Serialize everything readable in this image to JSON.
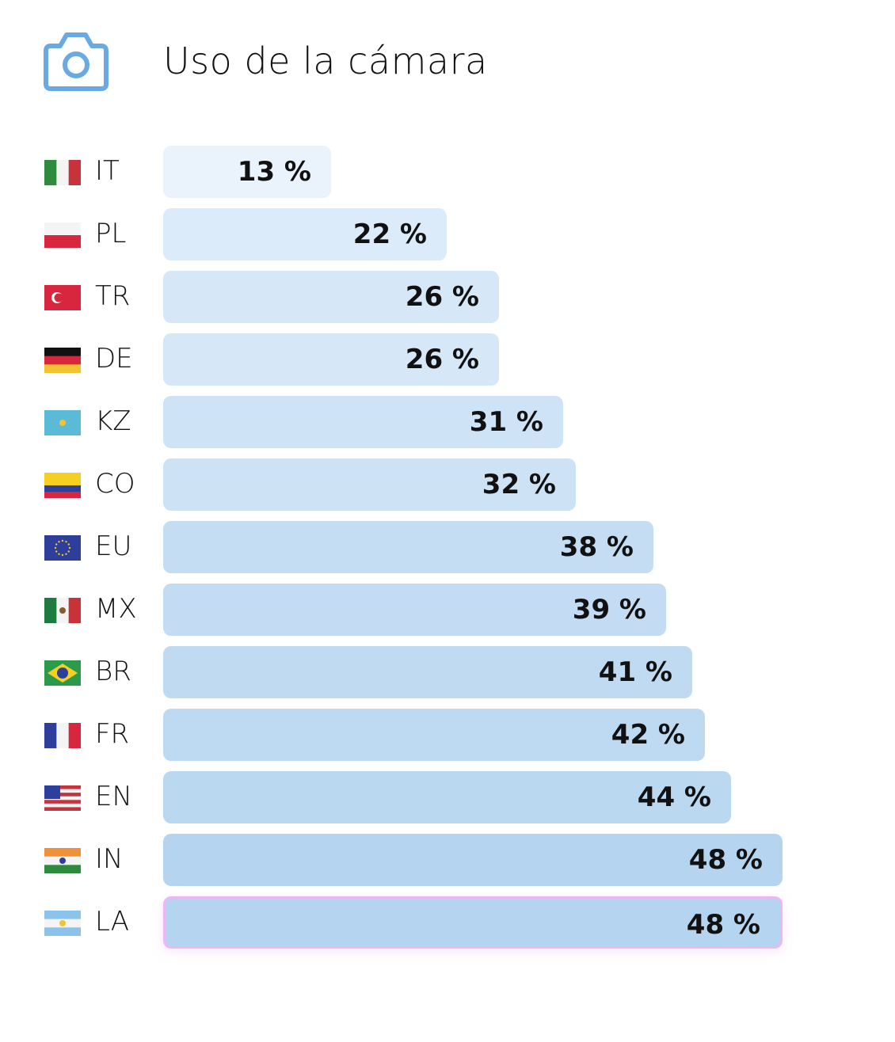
{
  "header": {
    "title": "Uso de la cámara",
    "icon": "camera-icon",
    "icon_color": "#6AAAE4"
  },
  "chart_data": {
    "type": "bar",
    "orientation": "horizontal",
    "title": "Uso de la cámara",
    "xlabel": "",
    "ylabel": "",
    "unit": "%",
    "categories": [
      "IT",
      "PL",
      "TR",
      "DE",
      "KZ",
      "CO",
      "EU",
      "MX",
      "BR",
      "FR",
      "EN",
      "IN",
      "LA"
    ],
    "values": [
      13,
      22,
      26,
      26,
      31,
      32,
      38,
      39,
      41,
      42,
      44,
      48,
      48
    ],
    "labels": [
      "13 %",
      "22 %",
      "26 %",
      "26 %",
      "31 %",
      "32 %",
      "38 %",
      "39 %",
      "41 %",
      "42 %",
      "44 %",
      "48 %",
      "48 %"
    ],
    "highlighted": "LA",
    "xlim": [
      0,
      48
    ],
    "grid": false,
    "colors": {
      "bar_low": "#EAF3FC",
      "bar_high": "#B5D4F0",
      "highlight_border": "#EBB8F5"
    }
  },
  "flags": {
    "IT": {
      "dir": "v",
      "c": [
        "#2E8B3E",
        "#F4F4F4",
        "#C8323A"
      ]
    },
    "PL": {
      "dir": "h",
      "c": [
        "#F4F4F4",
        "#D7263D"
      ]
    },
    "TR": {
      "dir": "h",
      "c": [
        "#D7263D"
      ]
    },
    "DE": {
      "dir": "h",
      "c": [
        "#111111",
        "#D7263D",
        "#F2C230"
      ]
    },
    "KZ": {
      "dir": "h",
      "c": [
        "#5BBAD5"
      ]
    },
    "CO": {
      "dir": "h",
      "c": [
        "#F5D020",
        "#F5D020",
        "#2D3F9B",
        "#D7263D"
      ]
    },
    "EU": {
      "dir": "h",
      "c": [
        "#2D3F9B"
      ]
    },
    "MX": {
      "dir": "v",
      "c": [
        "#1F7A3F",
        "#F4F4F4",
        "#C8323A"
      ]
    },
    "BR": {
      "dir": "h",
      "c": [
        "#2B9A4A"
      ]
    },
    "FR": {
      "dir": "v",
      "c": [
        "#2D3F9B",
        "#F4F4F4",
        "#D7263D"
      ]
    },
    "EN": {
      "dir": "h",
      "c": [
        "#C8323A",
        "#F4F4F4",
        "#C8323A",
        "#F4F4F4",
        "#C8323A",
        "#F4F4F4",
        "#C8323A"
      ]
    },
    "IN": {
      "dir": "h",
      "c": [
        "#F0913A",
        "#F4F4F4",
        "#2E8B3E"
      ]
    },
    "LA": {
      "dir": "h",
      "c": [
        "#8CC3EA",
        "#F4F4F4",
        "#8CC3EA"
      ]
    }
  }
}
